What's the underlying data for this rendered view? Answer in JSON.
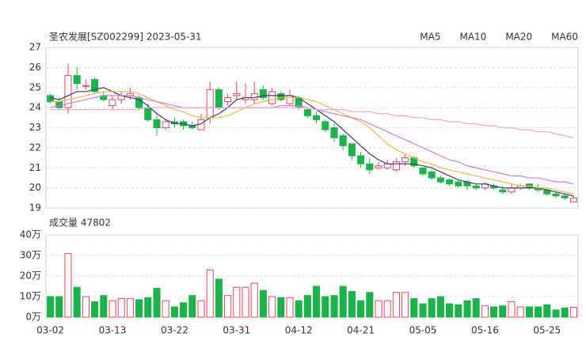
{
  "chart_data": [
    {
      "type": "candlestick",
      "title": "圣农发展[SZ002299] 2023-05-31",
      "categories": [
        "03-02",
        null,
        null,
        null,
        null,
        null,
        null,
        "03-13",
        null,
        null,
        null,
        null,
        null,
        null,
        "03-22",
        null,
        null,
        null,
        null,
        null,
        null,
        "03-31",
        null,
        null,
        null,
        null,
        null,
        null,
        "04-12",
        null,
        null,
        null,
        null,
        null,
        null,
        "04-21",
        null,
        null,
        null,
        null,
        null,
        null,
        "05-05",
        null,
        null,
        null,
        null,
        null,
        null,
        "05-16",
        null,
        null,
        null,
        null,
        null,
        null,
        "05-25",
        null,
        null,
        null
      ],
      "open": [
        24.6,
        24.3,
        24.0,
        25.6,
        25.1,
        25.4,
        24.6,
        24.1,
        24.4,
        24.6,
        24.5,
        24.0,
        23.4,
        23.0,
        23.3,
        23.3,
        23.1,
        22.9,
        23.5,
        24.9,
        24.3,
        24.6,
        24.4,
        24.4,
        24.9,
        24.2,
        24.7,
        24.2,
        24.5,
        23.9,
        23.6,
        23.3,
        23.0,
        22.6,
        22.2,
        21.6,
        21.2,
        21.0,
        21.0,
        20.9,
        21.3,
        21.5,
        21.0,
        20.8,
        20.5,
        20.4,
        20.3,
        20.3,
        20.1,
        20.0,
        20.1,
        19.9,
        19.8,
        20.0,
        20.2,
        20.0,
        19.9,
        19.7,
        19.6,
        19.3
      ],
      "high": [
        24.7,
        24.5,
        26.2,
        26.0,
        25.4,
        25.5,
        24.8,
        24.6,
        24.8,
        25.0,
        24.6,
        24.2,
        23.6,
        23.4,
        23.5,
        23.4,
        23.3,
        23.7,
        25.3,
        25.0,
        24.7,
        25.3,
        25.2,
        25.3,
        25.1,
        25.0,
        24.8,
        24.9,
        24.6,
        24.0,
        23.8,
        23.4,
        23.2,
        22.7,
        22.2,
        21.8,
        21.5,
        21.3,
        21.4,
        21.5,
        21.7,
        21.6,
        21.0,
        20.9,
        20.6,
        20.5,
        20.4,
        20.4,
        20.2,
        20.3,
        20.2,
        20.1,
        20.2,
        20.2,
        20.2,
        20.2,
        20.0,
        19.8,
        19.7,
        19.6
      ],
      "low": [
        24.2,
        23.9,
        23.7,
        24.9,
        24.9,
        24.7,
        24.3,
        23.9,
        24.2,
        24.4,
        23.9,
        23.3,
        22.6,
        22.9,
        23.0,
        22.9,
        22.9,
        22.9,
        23.2,
        23.9,
        24.1,
        24.4,
        24.2,
        24.2,
        24.4,
        24.1,
        24.3,
        24.1,
        23.9,
        23.5,
        23.2,
        22.8,
        22.3,
        21.9,
        21.4,
        21.0,
        20.7,
        20.9,
        20.9,
        20.8,
        21.1,
        21.0,
        20.6,
        20.4,
        20.2,
        20.1,
        20.0,
        19.9,
        19.9,
        19.9,
        19.9,
        19.7,
        19.7,
        19.9,
        19.9,
        19.8,
        19.6,
        19.5,
        19.4,
        19.3
      ],
      "close": [
        24.3,
        24.0,
        25.6,
        25.2,
        25.1,
        24.8,
        24.4,
        24.4,
        24.6,
        24.7,
        24.0,
        23.4,
        23.0,
        23.3,
        23.2,
        23.1,
        23.0,
        23.4,
        24.9,
        24.0,
        24.5,
        24.7,
        24.5,
        24.7,
        24.5,
        24.8,
        24.4,
        24.6,
        24.0,
        23.6,
        23.4,
        22.9,
        22.5,
        22.1,
        21.6,
        21.2,
        20.9,
        21.1,
        21.2,
        21.3,
        21.5,
        21.1,
        20.7,
        20.5,
        20.3,
        20.2,
        20.1,
        20.1,
        20.0,
        20.2,
        20.0,
        19.8,
        20.0,
        20.1,
        20.0,
        19.9,
        19.7,
        19.6,
        19.5,
        19.5
      ],
      "series": [
        {
          "name": "MA5",
          "color": "#3b3b6d",
          "values": [
            24.5,
            24.4,
            24.6,
            24.8,
            24.8,
            24.9,
            25.0,
            24.8,
            24.6,
            24.5,
            24.4,
            24.1,
            23.7,
            23.4,
            23.2,
            23.2,
            23.1,
            23.2,
            23.5,
            23.7,
            24.0,
            24.4,
            24.5,
            24.5,
            24.6,
            24.6,
            24.6,
            24.6,
            24.5,
            24.2,
            23.9,
            23.6,
            23.3,
            22.9,
            22.5,
            22.1,
            21.7,
            21.4,
            21.2,
            21.2,
            21.2,
            21.2,
            21.1,
            21.0,
            20.8,
            20.6,
            20.4,
            20.3,
            20.2,
            20.2,
            20.1,
            20.0,
            20.0,
            20.0,
            20.0,
            20.0,
            19.9,
            19.8,
            19.7,
            19.6
          ]
        },
        {
          "name": "MA10",
          "color": "#f5b34a",
          "values": [
            24.3,
            24.3,
            24.4,
            24.5,
            24.6,
            24.7,
            24.8,
            24.8,
            24.8,
            24.8,
            24.7,
            24.5,
            24.3,
            24.1,
            23.9,
            23.8,
            23.6,
            23.5,
            23.5,
            23.5,
            23.6,
            23.8,
            24.0,
            24.2,
            24.3,
            24.4,
            24.5,
            24.5,
            24.5,
            24.4,
            24.3,
            24.1,
            23.9,
            23.7,
            23.5,
            23.3,
            23.0,
            22.6,
            22.2,
            21.9,
            21.7,
            21.5,
            21.3,
            21.2,
            21.0,
            20.9,
            20.8,
            20.7,
            20.6,
            20.5,
            20.4,
            20.3,
            20.2,
            20.1,
            20.1,
            20.0,
            20.0,
            19.9,
            19.8,
            19.7
          ]
        },
        {
          "name": "MA20",
          "color": "#c583e0",
          "values": [
            24.0,
            24.1,
            24.2,
            24.3,
            24.4,
            24.5,
            24.6,
            24.6,
            24.6,
            24.6,
            24.5,
            24.4,
            24.3,
            24.2,
            24.1,
            24.0,
            24.0,
            24.0,
            24.0,
            24.0,
            24.0,
            24.0,
            24.0,
            24.0,
            24.0,
            24.0,
            24.1,
            24.1,
            24.1,
            24.0,
            23.9,
            23.8,
            23.7,
            23.6,
            23.5,
            23.4,
            23.2,
            23.0,
            22.8,
            22.6,
            22.4,
            22.2,
            22.0,
            21.8,
            21.6,
            21.4,
            21.3,
            21.1,
            21.0,
            20.9,
            20.8,
            20.7,
            20.6,
            20.6,
            20.5,
            20.5,
            20.4,
            20.3,
            20.3,
            20.2
          ]
        },
        {
          "name": "MA60",
          "color": "#f4a3cd",
          "values": [
            23.9,
            23.9,
            23.9,
            23.9,
            23.9,
            23.9,
            23.9,
            23.9,
            23.9,
            23.9,
            23.9,
            24.0,
            24.0,
            24.0,
            24.0,
            24.0,
            24.0,
            24.0,
            24.0,
            24.0,
            24.0,
            24.0,
            24.0,
            24.0,
            24.0,
            24.0,
            24.0,
            24.0,
            24.0,
            24.0,
            23.9,
            23.9,
            23.9,
            23.9,
            23.8,
            23.8,
            23.8,
            23.7,
            23.7,
            23.6,
            23.6,
            23.5,
            23.5,
            23.4,
            23.4,
            23.3,
            23.3,
            23.2,
            23.2,
            23.1,
            23.1,
            23.0,
            23.0,
            22.9,
            22.9,
            22.8,
            22.8,
            22.7,
            22.6,
            22.5
          ]
        }
      ],
      "ylim": [
        19,
        27
      ],
      "yticks": [
        19,
        20,
        21,
        22,
        23,
        24,
        25,
        26,
        27
      ],
      "grid": true,
      "up_color": "#e8475c",
      "down_color": "#1db34a"
    },
    {
      "type": "bar",
      "title": "成交量 47802",
      "values": [
        10,
        10,
        31,
        14.5,
        10,
        7.5,
        10.5,
        8,
        9,
        9,
        8.5,
        9.5,
        14,
        8,
        5,
        7,
        10.5,
        8,
        23,
        18.5,
        10.5,
        14.5,
        14.5,
        16.5,
        13,
        10,
        9.5,
        9.5,
        8,
        10.5,
        15,
        10,
        10.5,
        15,
        12.5,
        8,
        12,
        8,
        8,
        12,
        12,
        9,
        6.5,
        9,
        10,
        6.5,
        6,
        8,
        9,
        5.5,
        5,
        5.5,
        7.5,
        5,
        5,
        5,
        6,
        3.5,
        4.5,
        4.7802
      ],
      "ylim": [
        0,
        40
      ],
      "yticks": [
        {
          "value": 0,
          "label": "0万"
        },
        {
          "value": 10,
          "label": "10万"
        },
        {
          "value": 20,
          "label": "20万"
        },
        {
          "value": 30,
          "label": "30万"
        },
        {
          "value": 40,
          "label": "40万"
        }
      ],
      "grid": true
    }
  ]
}
